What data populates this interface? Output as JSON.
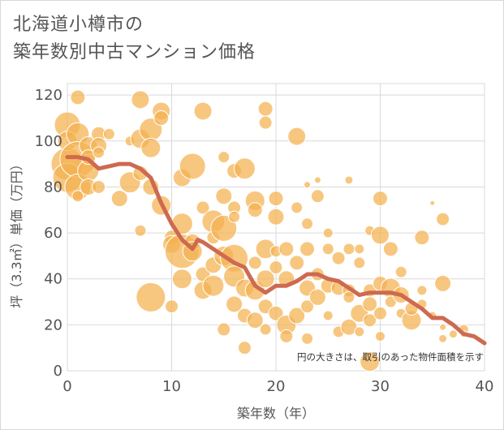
{
  "title_lines": [
    "北海道小樽市の",
    "築年数別中古マンション価格"
  ],
  "chart_data": {
    "type": "scatter",
    "xlabel": "築年数（年）",
    "ylabel": "坪（3.3㎡）単価（万円）",
    "xlim": [
      0,
      40
    ],
    "ylim": [
      0,
      125
    ],
    "x_ticks": [
      0,
      10,
      20,
      30,
      40
    ],
    "y_ticks": [
      0,
      20,
      40,
      60,
      80,
      100,
      120
    ],
    "grid": true,
    "note": "円の大きさは、取引のあった物件面積を示す",
    "colors": {
      "bubble": "#f4b24f",
      "bubble_stroke": "#ffffff",
      "trend": "#cd6a50",
      "grid": "#d9d9d9"
    },
    "bubbles": [
      {
        "x": 0,
        "y": 107,
        "s": 16
      },
      {
        "x": 0,
        "y": 90,
        "s": 20
      },
      {
        "x": 0,
        "y": 100,
        "s": 12
      },
      {
        "x": 0,
        "y": 84,
        "s": 18
      },
      {
        "x": 1,
        "y": 119,
        "s": 9
      },
      {
        "x": 1,
        "y": 103,
        "s": 14
      },
      {
        "x": 1,
        "y": 92,
        "s": 22
      },
      {
        "x": 1,
        "y": 80,
        "s": 16
      },
      {
        "x": 1,
        "y": 76,
        "s": 7
      },
      {
        "x": 2,
        "y": 98,
        "s": 11
      },
      {
        "x": 2,
        "y": 87,
        "s": 13
      },
      {
        "x": 2,
        "y": 80,
        "s": 10
      },
      {
        "x": 2,
        "y": 93,
        "s": 9
      },
      {
        "x": 3,
        "y": 103,
        "s": 9
      },
      {
        "x": 3,
        "y": 98,
        "s": 10
      },
      {
        "x": 3,
        "y": 95,
        "s": 7
      },
      {
        "x": 3,
        "y": 80,
        "s": 8
      },
      {
        "x": 4,
        "y": 103,
        "s": 7
      },
      {
        "x": 5,
        "y": 75,
        "s": 10
      },
      {
        "x": 6,
        "y": 100,
        "s": 6
      },
      {
        "x": 6,
        "y": 82,
        "s": 13
      },
      {
        "x": 7,
        "y": 118,
        "s": 11
      },
      {
        "x": 7,
        "y": 101,
        "s": 12
      },
      {
        "x": 7,
        "y": 61,
        "s": 7
      },
      {
        "x": 7,
        "y": 86,
        "s": 9
      },
      {
        "x": 8,
        "y": 105,
        "s": 14
      },
      {
        "x": 8,
        "y": 97,
        "s": 12
      },
      {
        "x": 8,
        "y": 80,
        "s": 10
      },
      {
        "x": 8,
        "y": 32,
        "s": 18
      },
      {
        "x": 9,
        "y": 113,
        "s": 11
      },
      {
        "x": 9,
        "y": 110,
        "s": 9
      },
      {
        "x": 9,
        "y": 72,
        "s": 12
      },
      {
        "x": 10,
        "y": 58,
        "s": 9
      },
      {
        "x": 10,
        "y": 28,
        "s": 8
      },
      {
        "x": 10,
        "y": 55,
        "s": 11
      },
      {
        "x": 11,
        "y": 84,
        "s": 11
      },
      {
        "x": 11,
        "y": 64,
        "s": 13
      },
      {
        "x": 11,
        "y": 52,
        "s": 21
      },
      {
        "x": 11,
        "y": 40,
        "s": 12
      },
      {
        "x": 12,
        "y": 89,
        "s": 16
      },
      {
        "x": 12,
        "y": 56,
        "s": 10
      },
      {
        "x": 12,
        "y": 52,
        "s": 12
      },
      {
        "x": 13,
        "y": 113,
        "s": 11
      },
      {
        "x": 13,
        "y": 71,
        "s": 8
      },
      {
        "x": 13,
        "y": 35,
        "s": 11
      },
      {
        "x": 13,
        "y": 42,
        "s": 9
      },
      {
        "x": 14,
        "y": 65,
        "s": 14
      },
      {
        "x": 14,
        "y": 58,
        "s": 8
      },
      {
        "x": 14,
        "y": 37,
        "s": 13
      },
      {
        "x": 14,
        "y": 46,
        "s": 10
      },
      {
        "x": 15,
        "y": 93,
        "s": 7
      },
      {
        "x": 15,
        "y": 76,
        "s": 10
      },
      {
        "x": 15,
        "y": 62,
        "s": 16
      },
      {
        "x": 15,
        "y": 50,
        "s": 12
      },
      {
        "x": 15,
        "y": 18,
        "s": 8
      },
      {
        "x": 16,
        "y": 87,
        "s": 9
      },
      {
        "x": 16,
        "y": 71,
        "s": 8
      },
      {
        "x": 16,
        "y": 67,
        "s": 7
      },
      {
        "x": 16,
        "y": 49,
        "s": 17
      },
      {
        "x": 16,
        "y": 41,
        "s": 13
      },
      {
        "x": 16,
        "y": 29,
        "s": 10
      },
      {
        "x": 17,
        "y": 88,
        "s": 13
      },
      {
        "x": 17,
        "y": 36,
        "s": 11
      },
      {
        "x": 17,
        "y": 24,
        "s": 9
      },
      {
        "x": 17,
        "y": 10,
        "s": 8
      },
      {
        "x": 18,
        "y": 74,
        "s": 12
      },
      {
        "x": 18,
        "y": 70,
        "s": 9
      },
      {
        "x": 18,
        "y": 47,
        "s": 8
      },
      {
        "x": 18,
        "y": 35,
        "s": 12
      },
      {
        "x": 18,
        "y": 22,
        "s": 10
      },
      {
        "x": 19,
        "y": 114,
        "s": 9
      },
      {
        "x": 19,
        "y": 108,
        "s": 8
      },
      {
        "x": 19,
        "y": 53,
        "s": 12
      },
      {
        "x": 19,
        "y": 40,
        "s": 11
      },
      {
        "x": 19,
        "y": 28,
        "s": 9
      },
      {
        "x": 19,
        "y": 18,
        "s": 7
      },
      {
        "x": 20,
        "y": 75,
        "s": 9
      },
      {
        "x": 20,
        "y": 67,
        "s": 10
      },
      {
        "x": 20,
        "y": 52,
        "s": 7
      },
      {
        "x": 20,
        "y": 45,
        "s": 8
      },
      {
        "x": 20,
        "y": 25,
        "s": 9
      },
      {
        "x": 21,
        "y": 53,
        "s": 9
      },
      {
        "x": 21,
        "y": 40,
        "s": 10
      },
      {
        "x": 21,
        "y": 20,
        "s": 12
      },
      {
        "x": 21,
        "y": 15,
        "s": 8
      },
      {
        "x": 22,
        "y": 102,
        "s": 11
      },
      {
        "x": 22,
        "y": 71,
        "s": 7
      },
      {
        "x": 22,
        "y": 47,
        "s": 9
      },
      {
        "x": 22,
        "y": 24,
        "s": 10
      },
      {
        "x": 23,
        "y": 81,
        "s": 4
      },
      {
        "x": 23,
        "y": 64,
        "s": 7
      },
      {
        "x": 23,
        "y": 53,
        "s": 9
      },
      {
        "x": 23,
        "y": 36,
        "s": 10
      },
      {
        "x": 23,
        "y": 28,
        "s": 8
      },
      {
        "x": 23,
        "y": 14,
        "s": 7
      },
      {
        "x": 24,
        "y": 83,
        "s": 4
      },
      {
        "x": 24,
        "y": 76,
        "s": 8
      },
      {
        "x": 24,
        "y": 42,
        "s": 8
      },
      {
        "x": 24,
        "y": 32,
        "s": 10
      },
      {
        "x": 25,
        "y": 60,
        "s": 6
      },
      {
        "x": 25,
        "y": 53,
        "s": 7
      },
      {
        "x": 25,
        "y": 37,
        "s": 9
      },
      {
        "x": 25,
        "y": 24,
        "s": 6
      },
      {
        "x": 26,
        "y": 49,
        "s": 8
      },
      {
        "x": 26,
        "y": 36,
        "s": 9
      },
      {
        "x": 26,
        "y": 17,
        "s": 7
      },
      {
        "x": 27,
        "y": 83,
        "s": 5
      },
      {
        "x": 27,
        "y": 53,
        "s": 7
      },
      {
        "x": 27,
        "y": 35,
        "s": 8
      },
      {
        "x": 27,
        "y": 19,
        "s": 10
      },
      {
        "x": 27,
        "y": 32,
        "s": 7
      },
      {
        "x": 28,
        "y": 47,
        "s": 7
      },
      {
        "x": 28,
        "y": 53,
        "s": 6
      },
      {
        "x": 28,
        "y": 25,
        "s": 11
      },
      {
        "x": 28,
        "y": 17,
        "s": 6
      },
      {
        "x": 29,
        "y": 61,
        "s": 6
      },
      {
        "x": 29,
        "y": 35,
        "s": 8
      },
      {
        "x": 29,
        "y": 29,
        "s": 9
      },
      {
        "x": 29,
        "y": 22,
        "s": 8
      },
      {
        "x": 29,
        "y": 4,
        "s": 12
      },
      {
        "x": 30,
        "y": 75,
        "s": 9
      },
      {
        "x": 30,
        "y": 59,
        "s": 11
      },
      {
        "x": 30,
        "y": 38,
        "s": 9
      },
      {
        "x": 30,
        "y": 25,
        "s": 8
      },
      {
        "x": 30,
        "y": 15,
        "s": 6
      },
      {
        "x": 31,
        "y": 53,
        "s": 9
      },
      {
        "x": 31,
        "y": 36,
        "s": 12
      },
      {
        "x": 31,
        "y": 30,
        "s": 7
      },
      {
        "x": 32,
        "y": 43,
        "s": 7
      },
      {
        "x": 32,
        "y": 33,
        "s": 10
      },
      {
        "x": 32,
        "y": 25,
        "s": 6
      },
      {
        "x": 33,
        "y": 22,
        "s": 12
      },
      {
        "x": 33,
        "y": 27,
        "s": 8
      },
      {
        "x": 34,
        "y": 58,
        "s": 9
      },
      {
        "x": 34,
        "y": 35,
        "s": 6
      },
      {
        "x": 34,
        "y": 29,
        "s": 6
      },
      {
        "x": 35,
        "y": 73,
        "s": 3
      },
      {
        "x": 35,
        "y": 24,
        "s": 5
      },
      {
        "x": 36,
        "y": 66,
        "s": 8
      },
      {
        "x": 36,
        "y": 38,
        "s": 10
      },
      {
        "x": 36,
        "y": 19,
        "s": 4
      },
      {
        "x": 36,
        "y": 14,
        "s": 5
      },
      {
        "x": 37,
        "y": 16,
        "s": 5
      },
      {
        "x": 38,
        "y": 18,
        "s": 6
      },
      {
        "x": 38,
        "y": 16,
        "s": 4
      }
    ],
    "trend": [
      [
        0,
        93
      ],
      [
        1,
        93
      ],
      [
        2,
        92
      ],
      [
        3,
        88
      ],
      [
        4,
        89
      ],
      [
        5,
        90
      ],
      [
        6,
        90
      ],
      [
        7,
        88
      ],
      [
        8,
        84
      ],
      [
        9,
        73
      ],
      [
        10,
        64
      ],
      [
        11,
        57
      ],
      [
        12,
        53
      ],
      [
        12.5,
        57
      ],
      [
        13,
        56
      ],
      [
        14,
        53
      ],
      [
        15,
        50
      ],
      [
        16,
        47
      ],
      [
        17,
        45
      ],
      [
        18,
        37
      ],
      [
        19,
        34
      ],
      [
        20,
        37
      ],
      [
        21,
        37
      ],
      [
        22,
        39
      ],
      [
        23,
        42
      ],
      [
        24,
        42
      ],
      [
        25,
        40
      ],
      [
        26,
        39
      ],
      [
        27,
        36
      ],
      [
        28,
        33
      ],
      [
        29,
        34
      ],
      [
        30,
        34
      ],
      [
        31,
        34
      ],
      [
        32,
        33
      ],
      [
        33,
        30
      ],
      [
        34,
        27
      ],
      [
        35,
        23
      ],
      [
        36,
        23
      ],
      [
        37,
        20
      ],
      [
        38,
        16
      ],
      [
        39,
        15
      ],
      [
        40,
        12
      ]
    ]
  }
}
